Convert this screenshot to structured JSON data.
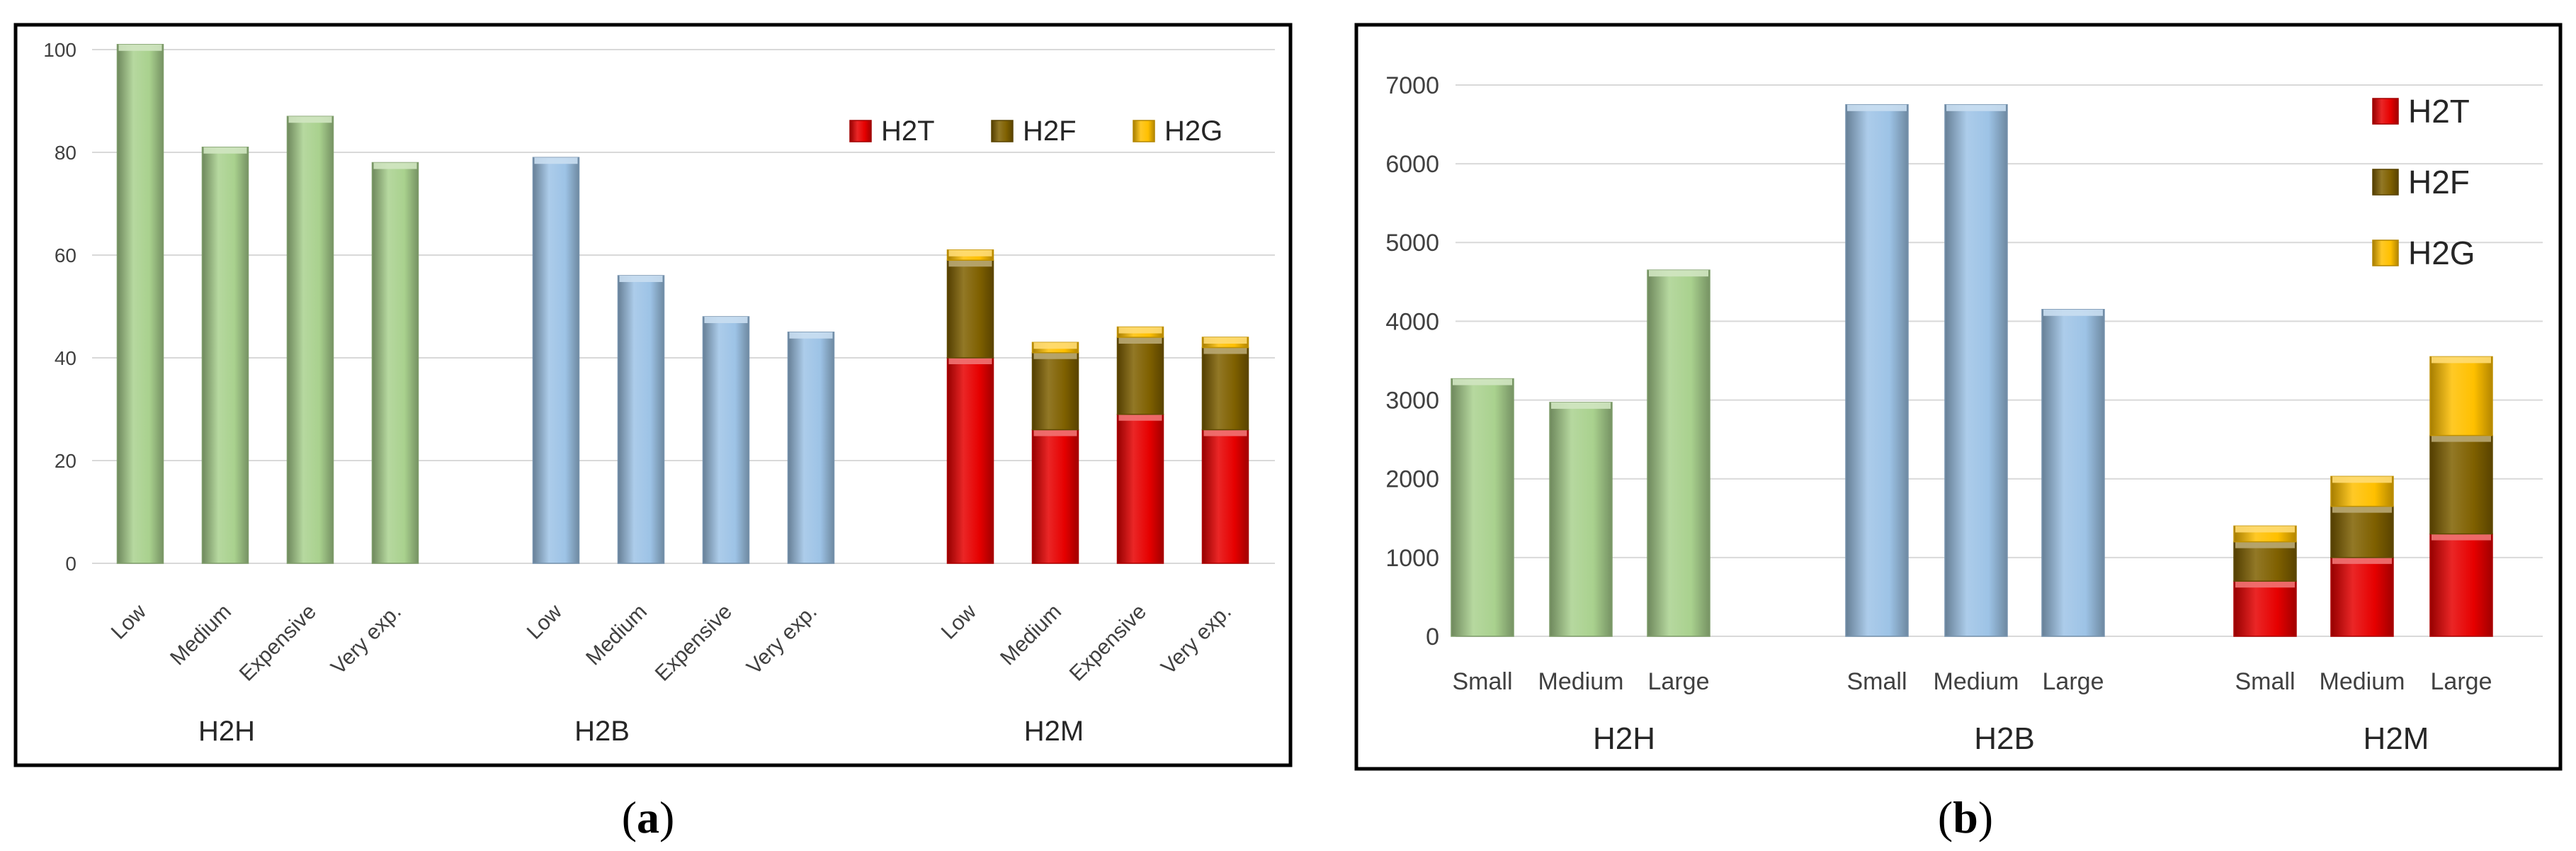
{
  "colors": {
    "H2H": "#a9d18e",
    "H2B": "#9dc3e6",
    "H2T": "#e60000",
    "H2F": "#7f6000",
    "H2G": "#ffc000",
    "frame": "#000000",
    "grid": "#d9d9d9"
  },
  "chart_data": [
    {
      "type": "bar",
      "caption": "a",
      "ylim": [
        0,
        100
      ],
      "yticks": [
        0,
        20,
        40,
        60,
        80,
        100
      ],
      "grid": true,
      "legend": {
        "position": "top-right",
        "entries": [
          "H2T",
          "H2F",
          "H2G"
        ]
      },
      "categories": [
        "Low",
        "Medium",
        "Expensive",
        "Very exp."
      ],
      "groups": [
        {
          "label": "H2H",
          "kind": "single",
          "color_key": "H2H",
          "values": [
            101,
            81,
            87,
            78
          ]
        },
        {
          "label": "H2B",
          "kind": "single",
          "color_key": "H2B",
          "values": [
            79,
            56,
            48,
            45
          ]
        },
        {
          "label": "H2M",
          "kind": "stacked",
          "series": [
            {
              "name": "H2T",
              "values": [
                40,
                26,
                29,
                26
              ]
            },
            {
              "name": "H2F",
              "values": [
                19,
                15,
                15,
                16
              ]
            },
            {
              "name": "H2G",
              "values": [
                2,
                2,
                2,
                2
              ]
            }
          ]
        }
      ]
    },
    {
      "type": "bar",
      "caption": "b",
      "ylim": [
        0,
        7000
      ],
      "yticks": [
        0,
        1000,
        2000,
        3000,
        4000,
        5000,
        6000,
        7000
      ],
      "grid": true,
      "legend": {
        "position": "top-right",
        "entries": [
          "H2T",
          "H2F",
          "H2G"
        ]
      },
      "categories": [
        "Small",
        "Medium",
        "Large"
      ],
      "groups": [
        {
          "label": "H2H",
          "kind": "single",
          "color_key": "H2H",
          "values": [
            3270,
            2970,
            4650
          ]
        },
        {
          "label": "H2B",
          "kind": "single",
          "color_key": "H2B",
          "values": [
            6750,
            6750,
            4150
          ]
        },
        {
          "label": "H2M",
          "kind": "stacked",
          "series": [
            {
              "name": "H2T",
              "values": [
                700,
                1000,
                1300
              ]
            },
            {
              "name": "H2F",
              "values": [
                500,
                650,
                1250
              ]
            },
            {
              "name": "H2G",
              "values": [
                200,
                380,
                1000
              ]
            }
          ]
        }
      ]
    }
  ]
}
